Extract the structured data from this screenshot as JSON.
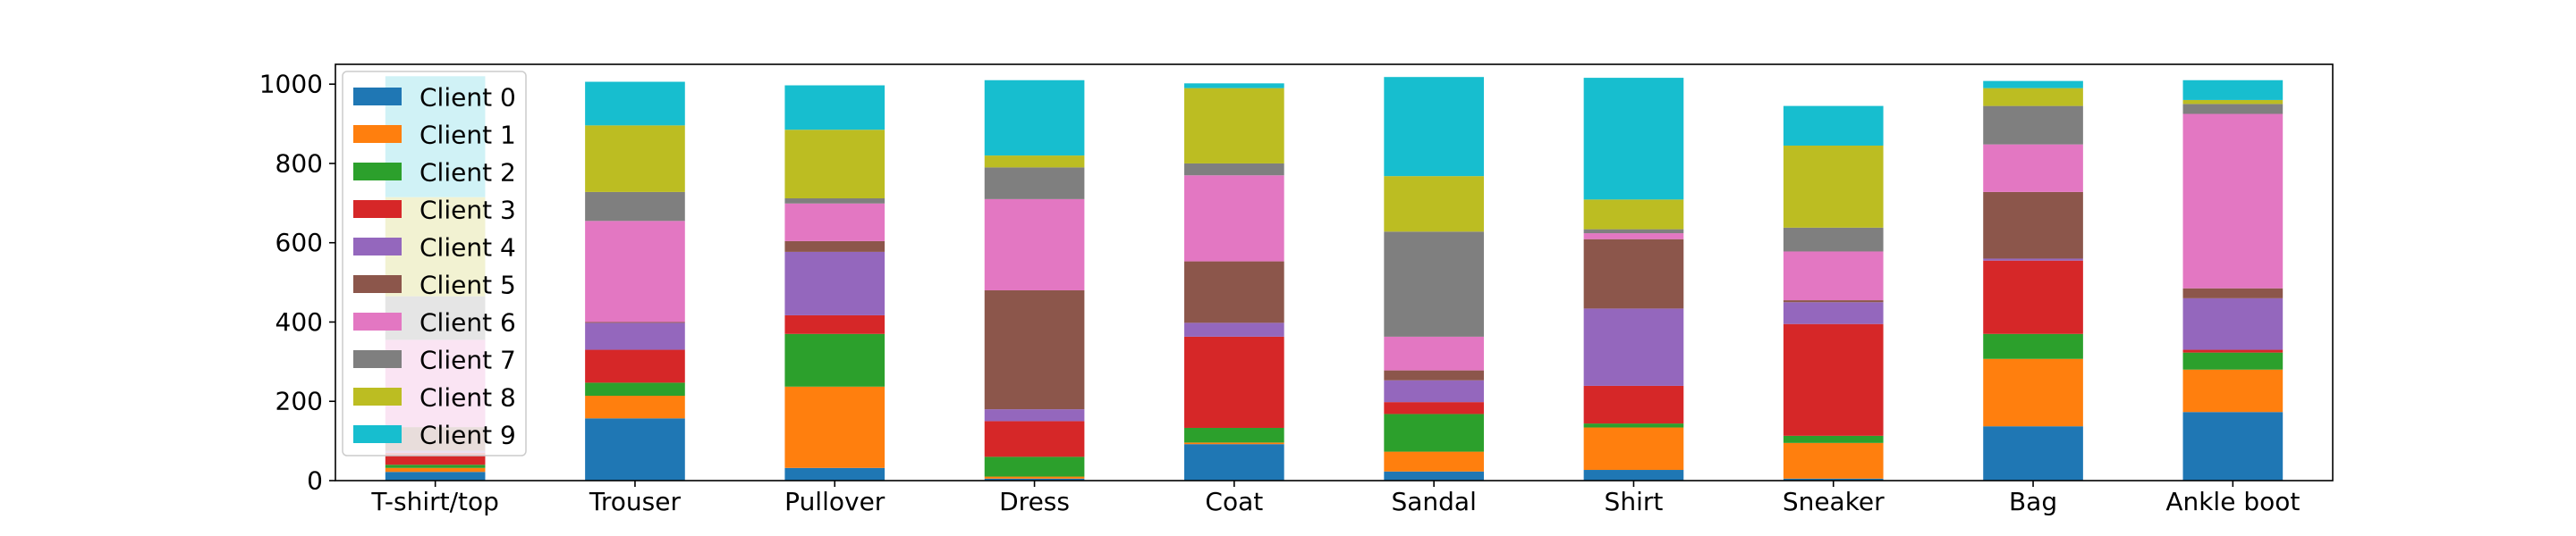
{
  "chart_data": {
    "type": "bar",
    "stacked": true,
    "title": "",
    "xlabel": "",
    "ylabel": "",
    "categories": [
      "T-shirt/top",
      "Trouser",
      "Pullover",
      "Dress",
      "Coat",
      "Sandal",
      "Shirt",
      "Sneaker",
      "Bag",
      "Ankle boot"
    ],
    "ylim": [
      0,
      1050
    ],
    "yticks": [
      0,
      200,
      400,
      600,
      800,
      1000
    ],
    "legend_position": "upper-left",
    "grid": false,
    "series": [
      {
        "name": "Client 0",
        "color": "#1f77b4",
        "values": [
          22,
          157,
          32,
          5,
          92,
          23,
          27,
          5,
          137,
          173
        ]
      },
      {
        "name": "Client 1",
        "color": "#ff7f0e",
        "values": [
          10,
          57,
          205,
          5,
          4,
          50,
          107,
          90,
          170,
          107
        ]
      },
      {
        "name": "Client 2",
        "color": "#2ca02c",
        "values": [
          8,
          33,
          133,
          50,
          37,
          95,
          10,
          18,
          63,
          43
        ]
      },
      {
        "name": "Client 3",
        "color": "#d62728",
        "values": [
          30,
          83,
          47,
          90,
          230,
          30,
          95,
          282,
          185,
          7
        ]
      },
      {
        "name": "Client 4",
        "color": "#9467bd",
        "values": [
          5,
          68,
          160,
          30,
          35,
          55,
          195,
          55,
          5,
          130
        ]
      },
      {
        "name": "Client 5",
        "color": "#8c564b",
        "values": [
          60,
          2,
          27,
          300,
          155,
          25,
          175,
          5,
          168,
          25
        ]
      },
      {
        "name": "Client 6",
        "color": "#e377c2",
        "values": [
          220,
          255,
          95,
          230,
          217,
          85,
          15,
          123,
          120,
          440
        ]
      },
      {
        "name": "Client 7",
        "color": "#7f7f7f",
        "values": [
          110,
          73,
          13,
          80,
          30,
          265,
          10,
          60,
          97,
          25
        ]
      },
      {
        "name": "Client 8",
        "color": "#bcbd22",
        "values": [
          250,
          168,
          173,
          30,
          190,
          140,
          75,
          207,
          45,
          10
        ]
      },
      {
        "name": "Client 9",
        "color": "#17becf",
        "values": [
          305,
          110,
          112,
          190,
          12,
          250,
          307,
          100,
          18,
          50
        ]
      }
    ]
  }
}
